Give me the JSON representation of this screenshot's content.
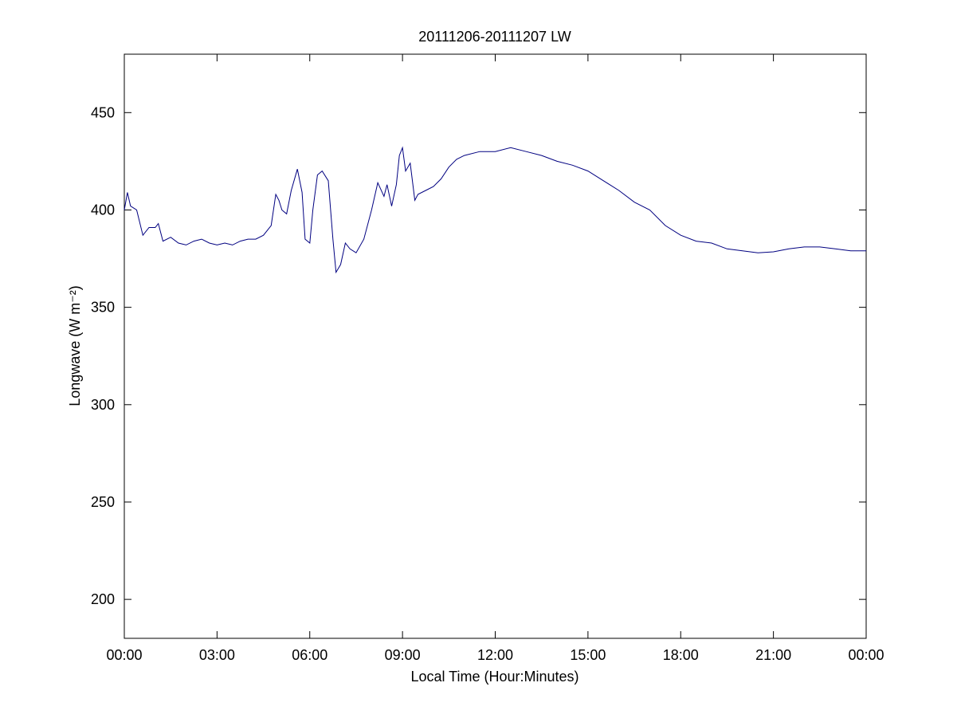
{
  "chart_data": {
    "type": "line",
    "title": "20111206-20111207 LW",
    "xlabel": "Local Time (Hour:Minutes)",
    "ylabel": "Longwave (W m⁻²)",
    "x": [
      0,
      0.1,
      0.2,
      0.4,
      0.6,
      0.8,
      1.0,
      1.1,
      1.25,
      1.5,
      1.75,
      2.0,
      2.25,
      2.5,
      2.75,
      3.0,
      3.25,
      3.5,
      3.75,
      4.0,
      4.25,
      4.5,
      4.75,
      4.9,
      5.0,
      5.1,
      5.25,
      5.4,
      5.6,
      5.75,
      5.85,
      6.0,
      6.1,
      6.25,
      6.4,
      6.6,
      6.75,
      6.85,
      7.0,
      7.15,
      7.3,
      7.5,
      7.75,
      8.0,
      8.2,
      8.4,
      8.5,
      8.65,
      8.8,
      8.9,
      9.0,
      9.1,
      9.25,
      9.4,
      9.5,
      9.75,
      10.0,
      10.25,
      10.5,
      10.75,
      11.0,
      11.5,
      12.0,
      12.5,
      13.0,
      13.5,
      14.0,
      14.5,
      15.0,
      15.5,
      16.0,
      16.5,
      17.0,
      17.5,
      18.0,
      18.5,
      19.0,
      19.5,
      20.0,
      20.5,
      21.0,
      21.5,
      22.0,
      22.5,
      23.0,
      23.5,
      24.0
    ],
    "series": [
      {
        "name": "LW",
        "color": "#000080",
        "values": [
          400,
          409,
          402,
          400,
          387,
          391,
          391,
          393,
          384,
          386,
          383,
          382,
          384,
          385,
          383,
          382,
          383,
          382,
          384,
          385,
          385,
          387,
          392,
          408,
          405,
          400,
          398,
          410,
          421,
          409,
          385,
          383,
          400,
          418,
          420,
          415,
          385,
          368,
          372,
          383,
          380,
          378,
          385,
          400,
          414,
          407,
          413,
          402,
          413,
          428,
          432,
          420,
          424,
          405,
          408,
          410,
          412,
          416,
          422,
          426,
          428,
          430,
          430,
          432,
          430,
          428,
          425,
          423,
          420,
          415,
          410,
          404,
          400,
          392,
          387,
          384,
          383,
          380,
          379,
          378,
          378.5,
          380,
          381,
          381,
          380,
          379,
          379
        ]
      }
    ],
    "xlim": [
      0,
      24
    ],
    "xticks": [
      {
        "value": 0,
        "label": "00:00"
      },
      {
        "value": 3,
        "label": "03:00"
      },
      {
        "value": 6,
        "label": "06:00"
      },
      {
        "value": 9,
        "label": "09:00"
      },
      {
        "value": 12,
        "label": "12:00"
      },
      {
        "value": 15,
        "label": "15:00"
      },
      {
        "value": 18,
        "label": "18:00"
      },
      {
        "value": 21,
        "label": "21:00"
      },
      {
        "value": 24,
        "label": "00:00"
      }
    ],
    "ylim": [
      180,
      480
    ],
    "yticks": [
      200,
      250,
      300,
      350,
      400,
      450
    ],
    "grid": false
  }
}
